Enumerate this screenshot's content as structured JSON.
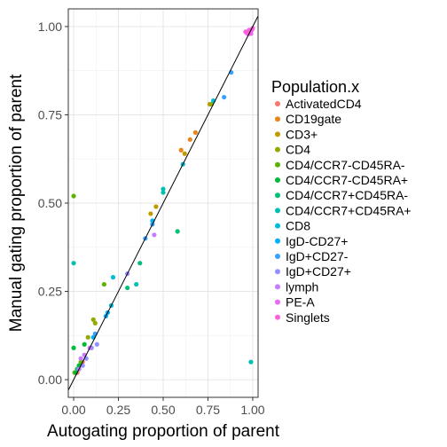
{
  "chart_data": {
    "type": "scatter",
    "title": "",
    "xlabel": "Autogating proportion of parent",
    "ylabel": "Manual gating proportion of parent",
    "xlim": [
      -0.03,
      1.03
    ],
    "ylim": [
      -0.05,
      1.05
    ],
    "x_ticks": [
      0.0,
      0.25,
      0.5,
      0.75,
      1.0
    ],
    "x_tick_labels": [
      "0.00",
      "0.25",
      "0.50",
      "0.75",
      "1.00"
    ],
    "y_ticks": [
      0.0,
      0.25,
      0.5,
      0.75,
      1.0
    ],
    "y_tick_labels": [
      "0.00",
      "0.25",
      "0.50",
      "0.75",
      "1.00"
    ],
    "grid": true,
    "reference_line": "y = x",
    "legend_title": "Population.x",
    "legend_position": "right",
    "series": [
      {
        "name": "ActivatedCD4",
        "color": "#F8766D",
        "points": [
          [
            0.03,
            0.04
          ],
          [
            0.05,
            0.05
          ],
          [
            0.02,
            0.02
          ]
        ]
      },
      {
        "name": "CD19gate",
        "color": "#E7861B",
        "points": [
          [
            0.6,
            0.65
          ],
          [
            0.65,
            0.68
          ],
          [
            0.68,
            0.7
          ],
          [
            0.03,
            0.03
          ]
        ]
      },
      {
        "name": "CD3+",
        "color": "#C09B00",
        "points": [
          [
            0.43,
            0.47
          ],
          [
            0.46,
            0.49
          ],
          [
            0.62,
            0.64
          ],
          [
            0.76,
            0.78
          ]
        ]
      },
      {
        "name": "CD4",
        "color": "#95A900",
        "points": [
          [
            0.11,
            0.17
          ],
          [
            0.12,
            0.16
          ],
          [
            0.08,
            0.12
          ],
          [
            0.77,
            0.78
          ],
          [
            0.005,
            0.02
          ]
        ]
      },
      {
        "name": "CD4/CCR7-CD45RA-",
        "color": "#5BB300",
        "points": [
          [
            0.0,
            0.52
          ],
          [
            0.17,
            0.27
          ],
          [
            0.02,
            0.03
          ],
          [
            0.04,
            0.05
          ]
        ]
      },
      {
        "name": "CD4/CCR7-CD45RA+",
        "color": "#00BA38",
        "points": [
          [
            0.0,
            0.09
          ],
          [
            0.06,
            0.1
          ],
          [
            0.03,
            0.04
          ],
          [
            0.01,
            0.02
          ]
        ]
      },
      {
        "name": "CD4/CCR7+CD45RA-",
        "color": "#00BF76",
        "points": [
          [
            0.58,
            0.42
          ],
          [
            0.37,
            0.33
          ],
          [
            0.3,
            0.26
          ],
          [
            0.02,
            0.03
          ]
        ]
      },
      {
        "name": "CD4/CCR7+CD45RA+",
        "color": "#00C0AF",
        "points": [
          [
            0.0,
            0.33
          ],
          [
            0.99,
            0.05
          ],
          [
            0.5,
            0.53
          ],
          [
            0.5,
            0.54
          ],
          [
            0.35,
            0.27
          ]
        ]
      },
      {
        "name": "CD8",
        "color": "#00BCD8",
        "points": [
          [
            0.22,
            0.29
          ],
          [
            0.61,
            0.61
          ],
          [
            0.78,
            0.79
          ],
          [
            0.21,
            0.21
          ]
        ]
      },
      {
        "name": "IgD-CD27+",
        "color": "#00B0F6",
        "points": [
          [
            0.18,
            0.18
          ],
          [
            0.19,
            0.19
          ],
          [
            0.44,
            0.45
          ],
          [
            0.11,
            0.12
          ]
        ]
      },
      {
        "name": "IgD+CD27-",
        "color": "#35A2FF",
        "points": [
          [
            0.4,
            0.4
          ],
          [
            0.44,
            0.44
          ],
          [
            0.84,
            0.8
          ],
          [
            0.88,
            0.87
          ],
          [
            0.12,
            0.13
          ]
        ]
      },
      {
        "name": "IgD+CD27+",
        "color": "#9590FF",
        "points": [
          [
            0.3,
            0.3
          ],
          [
            0.13,
            0.1
          ],
          [
            0.1,
            0.09
          ],
          [
            0.07,
            0.06
          ],
          [
            0.05,
            0.04
          ]
        ]
      },
      {
        "name": "lymph",
        "color": "#C77CFF",
        "points": [
          [
            0.45,
            0.41
          ],
          [
            0.04,
            0.06
          ],
          [
            0.06,
            0.07
          ],
          [
            0.03,
            0.03
          ],
          [
            0.09,
            0.09
          ]
        ]
      },
      {
        "name": "PE-A",
        "color": "#E76BF3",
        "points": [
          [
            0.98,
            0.99
          ],
          [
            0.99,
            0.98
          ],
          [
            0.97,
            0.98
          ],
          [
            0.99,
            0.99
          ]
        ]
      },
      {
        "name": "Singlets",
        "color": "#FA62DB",
        "points": [
          [
            0.99,
            0.99
          ],
          [
            0.98,
            0.98
          ],
          [
            0.97,
            0.985
          ],
          [
            1.0,
            0.995
          ],
          [
            0.96,
            0.985
          ],
          [
            0.995,
            0.99
          ]
        ]
      }
    ]
  }
}
